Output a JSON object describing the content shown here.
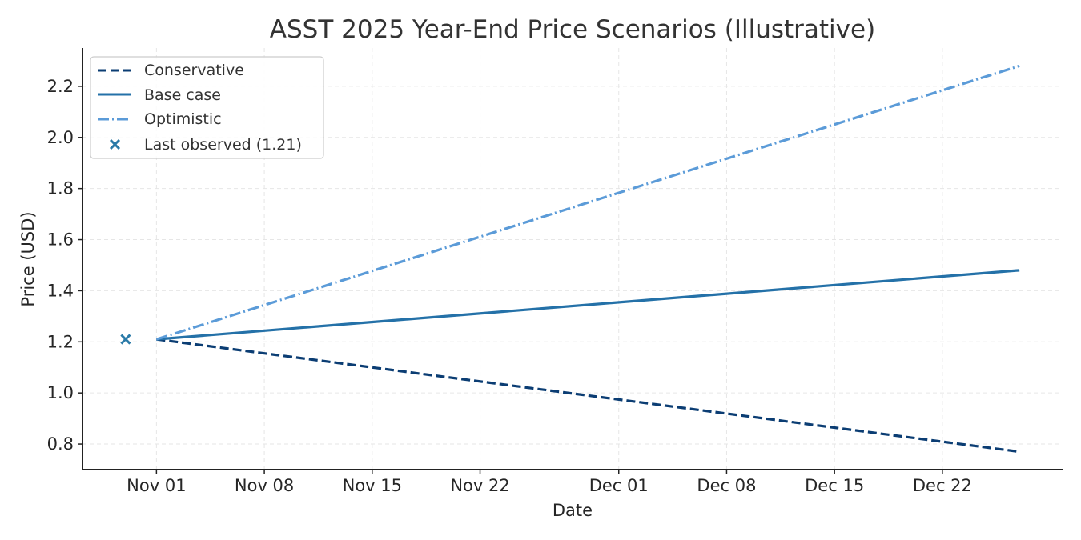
{
  "chart_data": {
    "type": "line",
    "title": "ASST 2025 Year-End Price Scenarios (Illustrative)",
    "xlabel": "Date",
    "ylabel": "Price (USD)",
    "x_start_date": "2025-11-01",
    "xlim_days_from_start": [
      -4.8,
      58.8
    ],
    "ylim": [
      0.7,
      2.35
    ],
    "grid": true,
    "legend_position": "top-left",
    "x_ticks": [
      {
        "day": 0,
        "label": "Nov 01"
      },
      {
        "day": 7,
        "label": "Nov 08"
      },
      {
        "day": 14,
        "label": "Nov 15"
      },
      {
        "day": 21,
        "label": "Nov 22"
      },
      {
        "day": 30,
        "label": "Dec 01"
      },
      {
        "day": 37,
        "label": "Dec 08"
      },
      {
        "day": 44,
        "label": "Dec 15"
      },
      {
        "day": 51,
        "label": "Dec 22"
      }
    ],
    "y_ticks": [
      {
        "value": 0.8,
        "label": "0.8"
      },
      {
        "value": 1.0,
        "label": "1.0"
      },
      {
        "value": 1.2,
        "label": "1.2"
      },
      {
        "value": 1.4,
        "label": "1.4"
      },
      {
        "value": 1.6,
        "label": "1.6"
      },
      {
        "value": 1.8,
        "label": "1.8"
      },
      {
        "value": 2.0,
        "label": "2.0"
      },
      {
        "value": 2.2,
        "label": "2.2"
      }
    ],
    "series": [
      {
        "name": "Conservative",
        "style": "dashed",
        "color": "#0b3d73",
        "x_days": [
          0,
          56
        ],
        "values": [
          1.21,
          0.77
        ]
      },
      {
        "name": "Base case",
        "style": "solid",
        "color": "#2471a8",
        "x_days": [
          0,
          56
        ],
        "values": [
          1.21,
          1.48
        ]
      },
      {
        "name": "Optimistic",
        "style": "dashdot",
        "color": "#5b9bd8",
        "x_days": [
          0,
          56
        ],
        "values": [
          1.21,
          2.28
        ]
      }
    ],
    "markers": [
      {
        "name": "Last observed (1.21)",
        "marker": "x",
        "color": "#2a7aa8",
        "x_day": -2,
        "value": 1.21
      }
    ]
  }
}
